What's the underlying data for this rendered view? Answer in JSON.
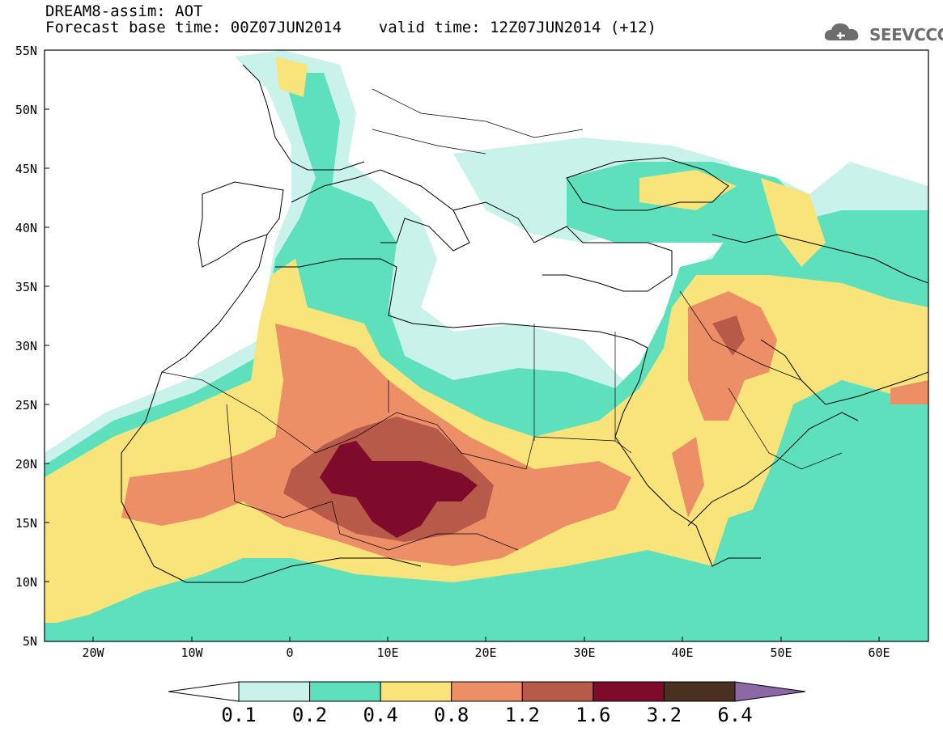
{
  "header": {
    "title_line1": "DREAM8-assim: AOT",
    "title_line2": "Forecast base time: 00Z07JUN2014    valid time: 12Z07JUN2014 (+12)"
  },
  "logo": {
    "text": "SEEVCCC",
    "icon": "cloud-logo-icon"
  },
  "map": {
    "lat_labels": [
      "55N",
      "50N",
      "45N",
      "40N",
      "35N",
      "30N",
      "25N",
      "20N",
      "15N",
      "10N",
      "5N"
    ],
    "lon_labels": [
      "20W",
      "10W",
      "0",
      "10E",
      "20E",
      "30E",
      "40E",
      "50E",
      "60E"
    ],
    "lon_range": [
      -25,
      65
    ],
    "lat_range": [
      5,
      55
    ]
  },
  "colorbar": {
    "labels": [
      "0.1",
      "0.2",
      "0.4",
      "0.8",
      "1.2",
      "1.6",
      "3.2",
      "6.4"
    ],
    "colors": [
      "#c8f2ea",
      "#5ee0bd",
      "#f8e47a",
      "#ec8f66",
      "#b85a4a",
      "#7e0a2c",
      "#4a3020",
      "#8c68a6"
    ]
  }
}
